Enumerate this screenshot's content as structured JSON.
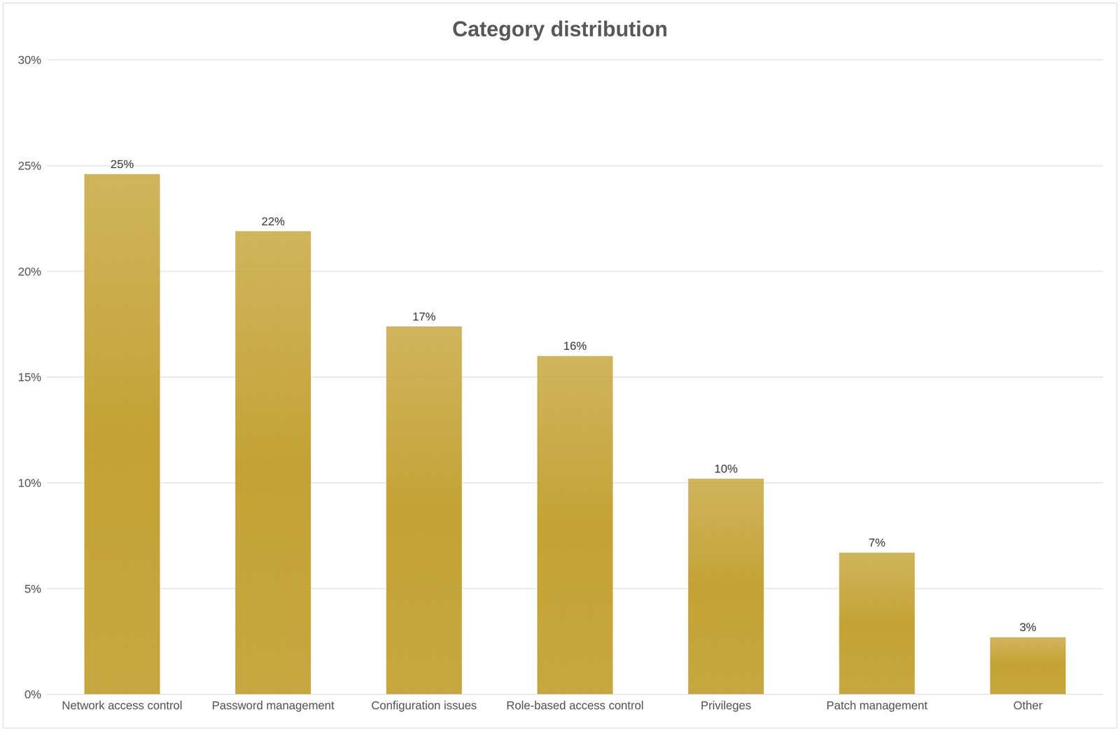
{
  "chart_data": {
    "type": "bar",
    "title": "Category distribution",
    "categories": [
      "Network access control",
      "Password management",
      "Configuration issues",
      "Role-based access control",
      "Privileges",
      "Patch management",
      "Other"
    ],
    "values": [
      24.6,
      21.9,
      17.4,
      16.0,
      10.2,
      6.7,
      2.7
    ],
    "value_labels": [
      "25%",
      "22%",
      "17%",
      "16%",
      "10%",
      "7%",
      "3%"
    ],
    "color": "#c4a235",
    "ylim": [
      0,
      30
    ],
    "yticks": [
      {
        "value": 0,
        "label": "0%"
      },
      {
        "value": 5,
        "label": "5%"
      },
      {
        "value": 10,
        "label": "10%"
      },
      {
        "value": 15,
        "label": "15%"
      },
      {
        "value": 20,
        "label": "20%"
      },
      {
        "value": 25,
        "label": "25%"
      },
      {
        "value": 30,
        "label": "30%"
      }
    ],
    "grid": true,
    "data_labels": true
  }
}
